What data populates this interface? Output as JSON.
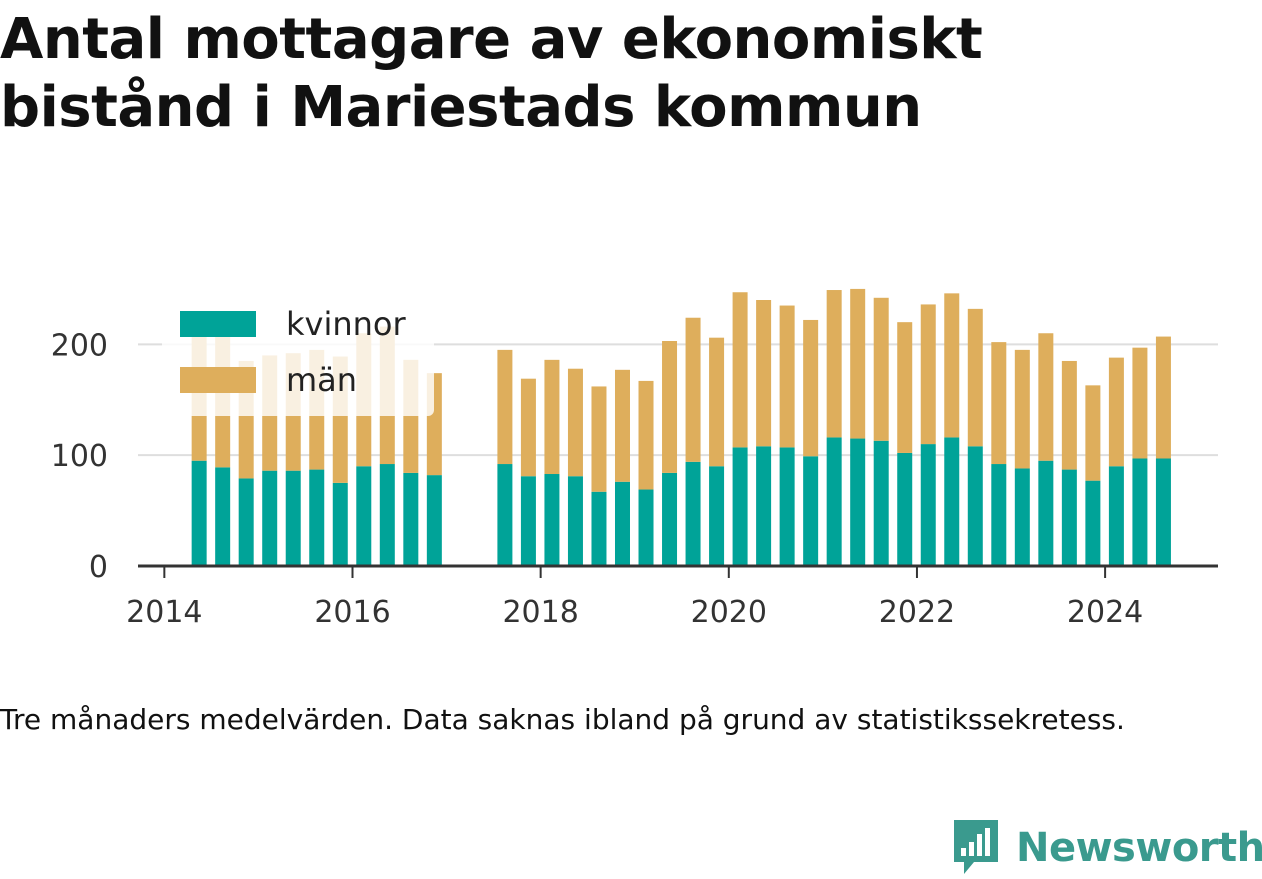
{
  "title": "Antal mottagare av ekonomiskt bistånd i Mariestads kommun",
  "caption": "Tre månaders medelvärden. Data saknas ibland på grund av statistikssekretess.",
  "brand": {
    "name": "Newsworthy",
    "icon": "newsworthy-chart-logo-icon",
    "color": "#3a9a8e"
  },
  "chart_data": {
    "type": "bar",
    "stacked": true,
    "xlabel": "",
    "ylabel": "",
    "ylim": [
      0,
      240
    ],
    "xlim": [
      2013.72,
      2025.2
    ],
    "yticks": [
      0,
      100,
      200
    ],
    "xticks": [
      2014,
      2016,
      2018,
      2020,
      2022,
      2024
    ],
    "grid": true,
    "legend_position": "top-left",
    "x": [
      2014.37,
      2014.62,
      2014.87,
      2015.12,
      2015.37,
      2015.62,
      2015.87,
      2016.12,
      2016.37,
      2016.62,
      2016.87,
      2017.62,
      2017.87,
      2018.12,
      2018.37,
      2018.62,
      2018.87,
      2019.12,
      2019.37,
      2019.62,
      2019.87,
      2020.12,
      2020.37,
      2020.62,
      2020.87,
      2021.12,
      2021.37,
      2021.62,
      2021.87,
      2022.12,
      2022.37,
      2022.62,
      2022.87,
      2023.12,
      2023.37,
      2023.62,
      2023.87,
      2024.12,
      2024.37,
      2024.62
    ],
    "series": [
      {
        "name": "kvinnor",
        "color": "#00a398",
        "values": [
          95,
          89,
          79,
          86,
          86,
          87,
          75,
          90,
          92,
          84,
          82,
          92,
          81,
          83,
          81,
          67,
          76,
          69,
          84,
          94,
          90,
          107,
          108,
          107,
          99,
          116,
          115,
          113,
          102,
          110,
          116,
          108,
          92,
          88,
          95,
          87,
          77,
          90,
          97,
          97
        ]
      },
      {
        "name": "män",
        "color": "#deae5c",
        "values": [
          130,
          119,
          106,
          104,
          106,
          108,
          114,
          120,
          124,
          102,
          92,
          103,
          88,
          103,
          97,
          95,
          101,
          98,
          119,
          130,
          116,
          140,
          132,
          128,
          123,
          133,
          135,
          129,
          118,
          126,
          130,
          124,
          110,
          107,
          115,
          98,
          86,
          98,
          100,
          110
        ]
      }
    ]
  }
}
